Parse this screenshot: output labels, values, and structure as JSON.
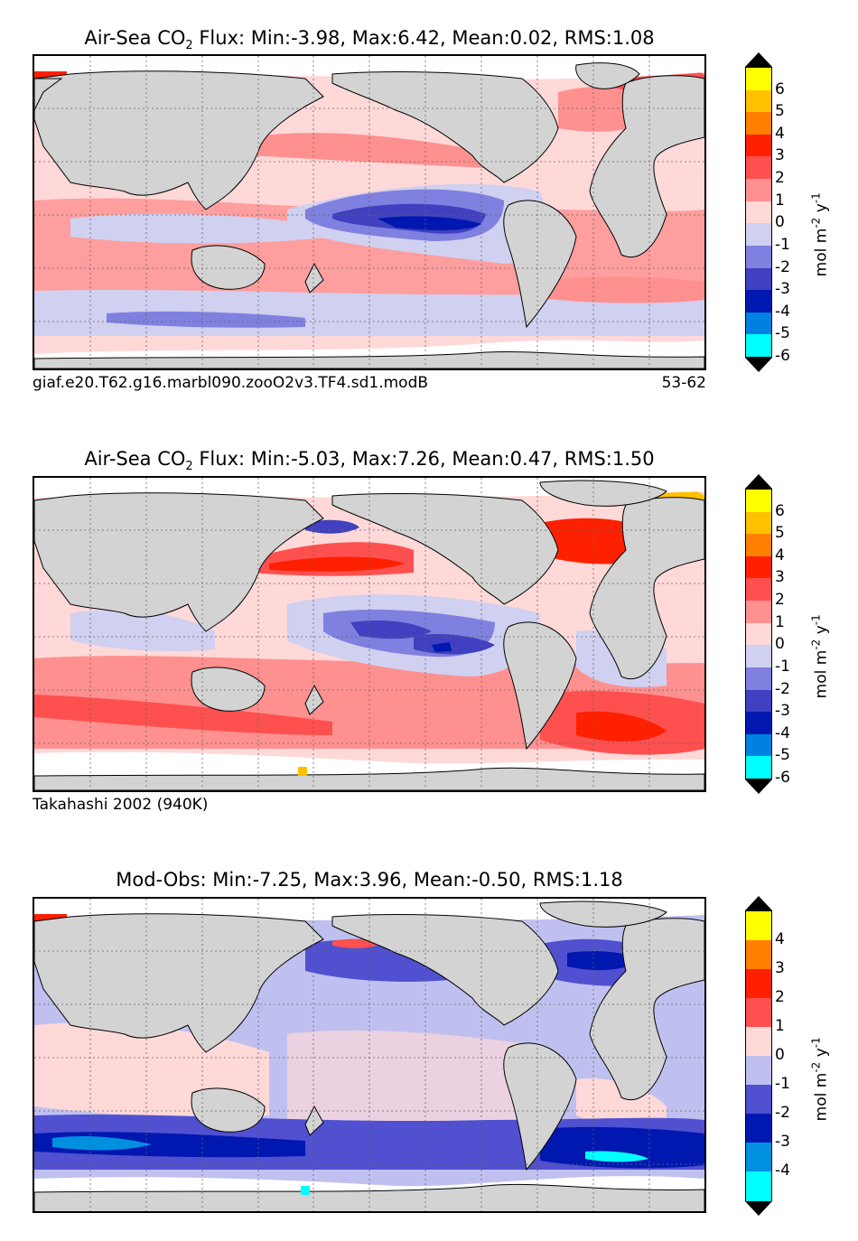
{
  "panels": [
    {
      "id": "model",
      "title_prefix": "Air-Sea CO",
      "title_sub": "2",
      "title_suffix": " Flux: Min:-3.98, Max:6.42, Mean:0.02, RMS:1.08",
      "caption_left": "giaf.e20.T62.g16.marbl090.zooO2v3.TF4.sd1.modB",
      "caption_right": "53-62",
      "colorbar": {
        "ticks": [
          "6",
          "5",
          "4",
          "3",
          "2",
          "1",
          "0",
          "-1",
          "-2",
          "-3",
          "-4",
          "-5",
          "-6"
        ],
        "colors": [
          "#ffff00",
          "#ffc000",
          "#ff8000",
          "#ff2000",
          "#ff5050",
          "#ff9090",
          "#ffd8d8",
          "#d0d0f0",
          "#8080e0",
          "#4040c0",
          "#0018b0",
          "#0080e0",
          "#00ffff"
        ],
        "label": "mol m",
        "label_sup1": "-2",
        "label_mid": " y",
        "label_sup2": "-1"
      }
    },
    {
      "id": "obs",
      "title_prefix": "Air-Sea CO",
      "title_sub": "2",
      "title_suffix": " Flux: Min:-5.03, Max:7.26, Mean:0.47, RMS:1.50",
      "caption_left": "Takahashi 2002 (940K)",
      "caption_right": "",
      "colorbar": {
        "ticks": [
          "6",
          "5",
          "4",
          "3",
          "2",
          "1",
          "0",
          "-1",
          "-2",
          "-3",
          "-4",
          "-5",
          "-6"
        ],
        "colors": [
          "#ffff00",
          "#ffc000",
          "#ff8000",
          "#ff2000",
          "#ff5050",
          "#ff9090",
          "#ffd8d8",
          "#d0d0f0",
          "#8080e0",
          "#4040c0",
          "#0018b0",
          "#0080e0",
          "#00ffff"
        ],
        "label": "mol m",
        "label_sup1": "-2",
        "label_mid": " y",
        "label_sup2": "-1"
      }
    },
    {
      "id": "diff",
      "title_prefix": "Mod-Obs: Min:-7.25, Max:3.96, Mean:-0.50, RMS:1.18",
      "title_sub": "",
      "title_suffix": "",
      "caption_left": "",
      "caption_right": "",
      "colorbar": {
        "ticks": [
          "4",
          "3",
          "2",
          "1",
          "0",
          "-1",
          "-2",
          "-3",
          "-4"
        ],
        "colors": [
          "#ffff00",
          "#ff8000",
          "#ff2000",
          "#ff5050",
          "#ffd8d8",
          "#c0c0f0",
          "#5050d0",
          "#0018b0",
          "#0090e0",
          "#00ffff"
        ],
        "label": "mol m",
        "label_sup1": "-2",
        "label_mid": " y",
        "label_sup2": "-1"
      }
    }
  ],
  "colors": {
    "land": "#d3d3d3",
    "ice": "#ffffff",
    "grid": "#666666"
  }
}
